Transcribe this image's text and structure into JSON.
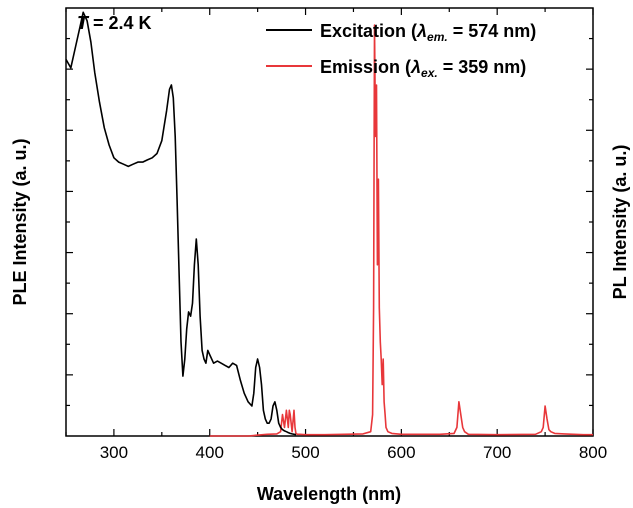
{
  "chart_data": {
    "type": "line",
    "xlabel": "Wavelength (nm)",
    "ylabel_left": "PLE Intensity (a. u.)",
    "ylabel_right": "PL Intensity (a. u.)",
    "xlim": [
      250,
      800
    ],
    "xticks": [
      300,
      400,
      500,
      600,
      700,
      800
    ],
    "ylim": [
      0,
      1
    ],
    "annotation": {
      "italic": "T",
      "rest": " = 2.4 K"
    },
    "legend": {
      "placement": "top-right",
      "entries": [
        {
          "prefix": "Excitation (",
          "symbol": "λ",
          "subscript": "em.",
          "suffix": " = 574 nm)"
        },
        {
          "prefix": "Emission (",
          "symbol": "λ",
          "subscript": "ex.",
          "suffix": " = 359 nm)"
        }
      ]
    },
    "series": [
      {
        "name": "Excitation",
        "color": "#000000",
        "x": [
          250,
          255,
          260,
          265,
          268,
          272,
          276,
          280,
          285,
          290,
          295,
          300,
          305,
          310,
          315,
          320,
          325,
          330,
          335,
          340,
          345,
          350,
          355,
          358,
          360,
          362,
          364,
          366,
          368,
          370,
          372,
          374,
          376,
          378,
          380,
          382,
          384,
          386,
          388,
          390,
          392,
          394,
          396,
          398,
          400,
          404,
          408,
          412,
          416,
          420,
          424,
          428,
          432,
          436,
          440,
          444,
          446,
          448,
          450,
          452,
          454,
          456,
          458,
          460,
          462,
          464,
          466,
          468,
          470,
          472,
          474,
          476,
          478,
          480,
          482,
          484,
          486,
          490
        ],
        "y": [
          0.88,
          0.86,
          0.91,
          0.96,
          0.99,
          0.97,
          0.92,
          0.85,
          0.78,
          0.72,
          0.68,
          0.65,
          0.64,
          0.635,
          0.63,
          0.635,
          0.64,
          0.64,
          0.645,
          0.65,
          0.66,
          0.69,
          0.76,
          0.81,
          0.82,
          0.79,
          0.7,
          0.55,
          0.38,
          0.22,
          0.14,
          0.18,
          0.25,
          0.29,
          0.28,
          0.31,
          0.4,
          0.46,
          0.4,
          0.28,
          0.2,
          0.18,
          0.17,
          0.2,
          0.19,
          0.17,
          0.175,
          0.17,
          0.165,
          0.16,
          0.17,
          0.165,
          0.13,
          0.1,
          0.08,
          0.07,
          0.1,
          0.16,
          0.18,
          0.16,
          0.12,
          0.06,
          0.04,
          0.03,
          0.03,
          0.04,
          0.07,
          0.08,
          0.06,
          0.03,
          0.02,
          0.015,
          0.012,
          0.01,
          0.008,
          0.006,
          0.005,
          0.003
        ]
      },
      {
        "name": "Emission",
        "color": "#e8373a",
        "x": [
          400,
          420,
          440,
          460,
          470,
          474,
          476,
          478,
          480,
          482,
          483,
          484,
          486,
          488,
          489,
          490,
          492,
          494,
          500,
          520,
          540,
          560,
          568,
          570,
          571,
          572,
          573,
          574,
          575,
          576,
          577,
          578,
          579,
          580,
          581,
          582,
          583,
          584,
          586,
          590,
          600,
          620,
          640,
          655,
          658,
          660,
          662,
          664,
          666,
          670,
          700,
          740,
          746,
          748,
          750,
          752,
          754,
          756,
          760,
          770,
          780,
          790,
          800
        ],
        "y": [
          0.0,
          0.0,
          0.0,
          0.004,
          0.005,
          0.01,
          0.05,
          0.02,
          0.06,
          0.02,
          0.06,
          0.05,
          0.01,
          0.06,
          0.02,
          0.005,
          0.004,
          0.004,
          0.003,
          0.003,
          0.004,
          0.005,
          0.01,
          0.05,
          0.3,
          0.96,
          0.7,
          0.82,
          0.4,
          0.6,
          0.3,
          0.22,
          0.18,
          0.12,
          0.18,
          0.08,
          0.05,
          0.02,
          0.01,
          0.006,
          0.004,
          0.004,
          0.004,
          0.006,
          0.02,
          0.08,
          0.05,
          0.02,
          0.01,
          0.004,
          0.003,
          0.004,
          0.01,
          0.02,
          0.07,
          0.04,
          0.015,
          0.01,
          0.006,
          0.005,
          0.004,
          0.003,
          0.003
        ]
      }
    ]
  }
}
